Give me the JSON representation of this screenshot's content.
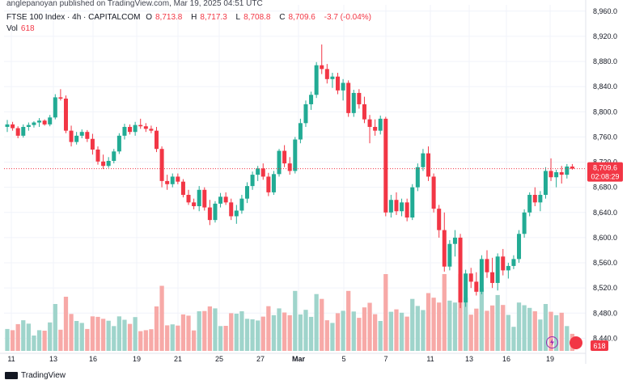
{
  "publisher_line": "anglepanoyan published on TradingView.com, Mar 19, 2025 04:51 UTC",
  "header": {
    "symbol": "FTSE 100 Index · 4h · CAPITALCOM",
    "open_label": "O",
    "open": "8,713.8",
    "high_label": "H",
    "high": "8,717.3",
    "low_label": "L",
    "low": "8,708.8",
    "close_label": "C",
    "close": "8,709.6",
    "change": "-3.7 (-0.04%)",
    "vol_label": "Vol",
    "vol_value": "618"
  },
  "price_tag": {
    "price": "8,709.6",
    "countdown": "02:08:29"
  },
  "vol_tag": "618",
  "brand": "TradingView",
  "colors": {
    "up": "#22ab94",
    "down": "#f23645",
    "vol_up": "#9fd4cb",
    "vol_down": "#f7a9a7",
    "grid": "#f0f3fa"
  },
  "chart_data": {
    "type": "candlestick",
    "interval": "4h",
    "ylim": [
      8420,
      8970
    ],
    "y_ticks": [
      "8,960.0",
      "8,920.0",
      "8,880.0",
      "8,840.0",
      "8,800.0",
      "8,760.0",
      "8,720.0",
      "8,680.0",
      "8,640.0",
      "8,600.0",
      "8,560.0",
      "8,520.0",
      "8,480.0",
      "8,440.0"
    ],
    "x_ticks": [
      "11",
      "13",
      "16",
      "19",
      "21",
      "25",
      "27",
      "Mar",
      "5",
      "7",
      "11",
      "13",
      "16",
      "19"
    ],
    "current_price": 8709.6,
    "ohlc": [
      [
        8776,
        8787,
        8768,
        8780
      ],
      [
        8780,
        8784,
        8770,
        8774
      ],
      [
        8774,
        8777,
        8758,
        8762
      ],
      [
        8762,
        8780,
        8759,
        8776
      ],
      [
        8776,
        8783,
        8770,
        8779
      ],
      [
        8779,
        8785,
        8775,
        8783
      ],
      [
        8783,
        8790,
        8776,
        8786
      ],
      [
        8786,
        8788,
        8778,
        8780
      ],
      [
        8780,
        8795,
        8777,
        8791
      ],
      [
        8791,
        8828,
        8788,
        8823
      ],
      [
        8823,
        8836,
        8818,
        8821
      ],
      [
        8821,
        8826,
        8766,
        8770
      ],
      [
        8770,
        8778,
        8745,
        8752
      ],
      [
        8752,
        8768,
        8748,
        8762
      ],
      [
        8762,
        8772,
        8758,
        8768
      ],
      [
        8768,
        8771,
        8752,
        8757
      ],
      [
        8757,
        8765,
        8732,
        8740
      ],
      [
        8740,
        8745,
        8716,
        8721
      ],
      [
        8721,
        8732,
        8709,
        8714
      ],
      [
        8714,
        8728,
        8711,
        8722
      ],
      [
        8722,
        8741,
        8718,
        8737
      ],
      [
        8737,
        8766,
        8733,
        8762
      ],
      [
        8762,
        8781,
        8756,
        8776
      ],
      [
        8776,
        8780,
        8764,
        8768
      ],
      [
        8768,
        8784,
        8762,
        8779
      ],
      [
        8779,
        8789,
        8773,
        8777
      ],
      [
        8777,
        8782,
        8768,
        8773
      ],
      [
        8773,
        8778,
        8766,
        8770
      ],
      [
        8770,
        8776,
        8736,
        8741
      ],
      [
        8741,
        8745,
        8680,
        8690
      ],
      [
        8690,
        8700,
        8676,
        8685
      ],
      [
        8685,
        8702,
        8680,
        8697
      ],
      [
        8697,
        8702,
        8685,
        8689
      ],
      [
        8689,
        8693,
        8664,
        8668
      ],
      [
        8668,
        8676,
        8652,
        8656
      ],
      [
        8656,
        8662,
        8645,
        8650
      ],
      [
        8650,
        8682,
        8642,
        8676
      ],
      [
        8676,
        8680,
        8643,
        8648
      ],
      [
        8648,
        8660,
        8620,
        8628
      ],
      [
        8628,
        8658,
        8624,
        8654
      ],
      [
        8654,
        8671,
        8648,
        8665
      ],
      [
        8665,
        8672,
        8652,
        8656
      ],
      [
        8656,
        8662,
        8628,
        8634
      ],
      [
        8634,
        8652,
        8622,
        8643
      ],
      [
        8643,
        8668,
        8638,
        8662
      ],
      [
        8662,
        8688,
        8655,
        8682
      ],
      [
        8682,
        8705,
        8676,
        8700
      ],
      [
        8700,
        8714,
        8690,
        8710
      ],
      [
        8710,
        8718,
        8692,
        8697
      ],
      [
        8697,
        8703,
        8666,
        8672
      ],
      [
        8672,
        8706,
        8668,
        8701
      ],
      [
        8701,
        8741,
        8697,
        8738
      ],
      [
        8738,
        8747,
        8712,
        8718
      ],
      [
        8718,
        8728,
        8700,
        8706
      ],
      [
        8706,
        8760,
        8702,
        8756
      ],
      [
        8756,
        8789,
        8750,
        8782
      ],
      [
        8782,
        8818,
        8776,
        8812
      ],
      [
        8812,
        8832,
        8803,
        8827
      ],
      [
        8827,
        8879,
        8822,
        8874
      ],
      [
        8874,
        8907,
        8860,
        8868
      ],
      [
        8868,
        8876,
        8845,
        8852
      ],
      [
        8852,
        8862,
        8838,
        8856
      ],
      [
        8856,
        8862,
        8828,
        8834
      ],
      [
        8834,
        8852,
        8818,
        8846
      ],
      [
        8846,
        8850,
        8792,
        8798
      ],
      [
        8798,
        8835,
        8792,
        8830
      ],
      [
        8830,
        8836,
        8805,
        8812
      ],
      [
        8812,
        8824,
        8782,
        8788
      ],
      [
        8788,
        8795,
        8750,
        8776
      ],
      [
        8776,
        8788,
        8762,
        8770
      ],
      [
        8770,
        8794,
        8764,
        8789
      ],
      [
        8789,
        8792,
        8634,
        8640
      ],
      [
        8640,
        8668,
        8632,
        8660
      ],
      [
        8660,
        8672,
        8636,
        8642
      ],
      [
        8642,
        8662,
        8634,
        8656
      ],
      [
        8656,
        8662,
        8626,
        8632
      ],
      [
        8632,
        8685,
        8628,
        8680
      ],
      [
        8680,
        8718,
        8674,
        8712
      ],
      [
        8712,
        8741,
        8706,
        8734
      ],
      [
        8734,
        8745,
        8690,
        8697
      ],
      [
        8697,
        8702,
        8640,
        8646
      ],
      [
        8646,
        8652,
        8600,
        8612
      ],
      [
        8612,
        8640,
        8546,
        8554
      ],
      [
        8554,
        8596,
        8548,
        8590
      ],
      [
        8590,
        8612,
        8570,
        8600
      ],
      [
        8600,
        8606,
        8488,
        8497
      ],
      [
        8497,
        8549,
        8490,
        8543
      ],
      [
        8543,
        8552,
        8520,
        8530
      ],
      [
        8530,
        8545,
        8508,
        8514
      ],
      [
        8514,
        8572,
        8510,
        8566
      ],
      [
        8566,
        8580,
        8536,
        8545
      ],
      [
        8545,
        8568,
        8520,
        8528
      ],
      [
        8528,
        8575,
        8516,
        8570
      ],
      [
        8570,
        8582,
        8540,
        8548
      ],
      [
        8548,
        8560,
        8535,
        8555
      ],
      [
        8555,
        8572,
        8550,
        8566
      ],
      [
        8566,
        8612,
        8560,
        8606
      ],
      [
        8606,
        8645,
        8600,
        8640
      ],
      [
        8640,
        8672,
        8634,
        8668
      ],
      [
        8668,
        8680,
        8650,
        8656
      ],
      [
        8656,
        8674,
        8642,
        8668
      ],
      [
        8668,
        8712,
        8662,
        8706
      ],
      [
        8706,
        8726,
        8690,
        8696
      ],
      [
        8696,
        8708,
        8680,
        8704
      ],
      [
        8704,
        8714,
        8686,
        8700
      ],
      [
        8700,
        8717,
        8694,
        8713
      ],
      [
        8713,
        8717,
        8708,
        8709.6
      ]
    ]
  }
}
